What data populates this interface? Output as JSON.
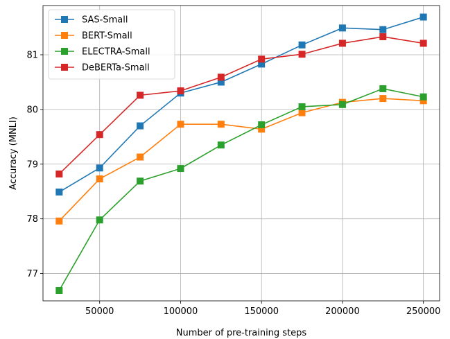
{
  "chart_data": {
    "type": "line",
    "title": "",
    "xlabel": "Number of pre-training steps",
    "ylabel": "Accuracy (MNLI)",
    "x": [
      25000,
      50000,
      75000,
      100000,
      125000,
      150000,
      175000,
      200000,
      225000,
      250000
    ],
    "xticks": [
      50000,
      100000,
      150000,
      200000,
      250000
    ],
    "yticks": [
      77,
      78,
      79,
      80,
      81
    ],
    "xlim": [
      15000,
      260000
    ],
    "ylim": [
      76.5,
      81.9
    ],
    "grid": true,
    "legend_position": "top-left",
    "marker": "square",
    "series": [
      {
        "name": "SAS-Small",
        "color": "#1f77b4",
        "values": [
          78.49,
          78.93,
          79.7,
          80.3,
          80.5,
          80.83,
          81.18,
          81.49,
          81.46,
          81.69
        ]
      },
      {
        "name": "BERT-Small",
        "color": "#ff7f0e",
        "values": [
          77.96,
          78.73,
          79.13,
          79.73,
          79.73,
          79.64,
          79.94,
          80.13,
          80.2,
          80.16
        ]
      },
      {
        "name": "ELECTRA-Small",
        "color": "#2ca02c",
        "values": [
          76.69,
          77.98,
          78.69,
          78.92,
          79.35,
          79.72,
          80.05,
          80.09,
          80.38,
          80.23
        ]
      },
      {
        "name": "DeBERTa-Small",
        "color": "#d62728",
        "values": [
          78.82,
          79.54,
          80.26,
          80.34,
          80.59,
          80.92,
          81.01,
          81.21,
          81.33,
          81.21
        ]
      }
    ]
  }
}
